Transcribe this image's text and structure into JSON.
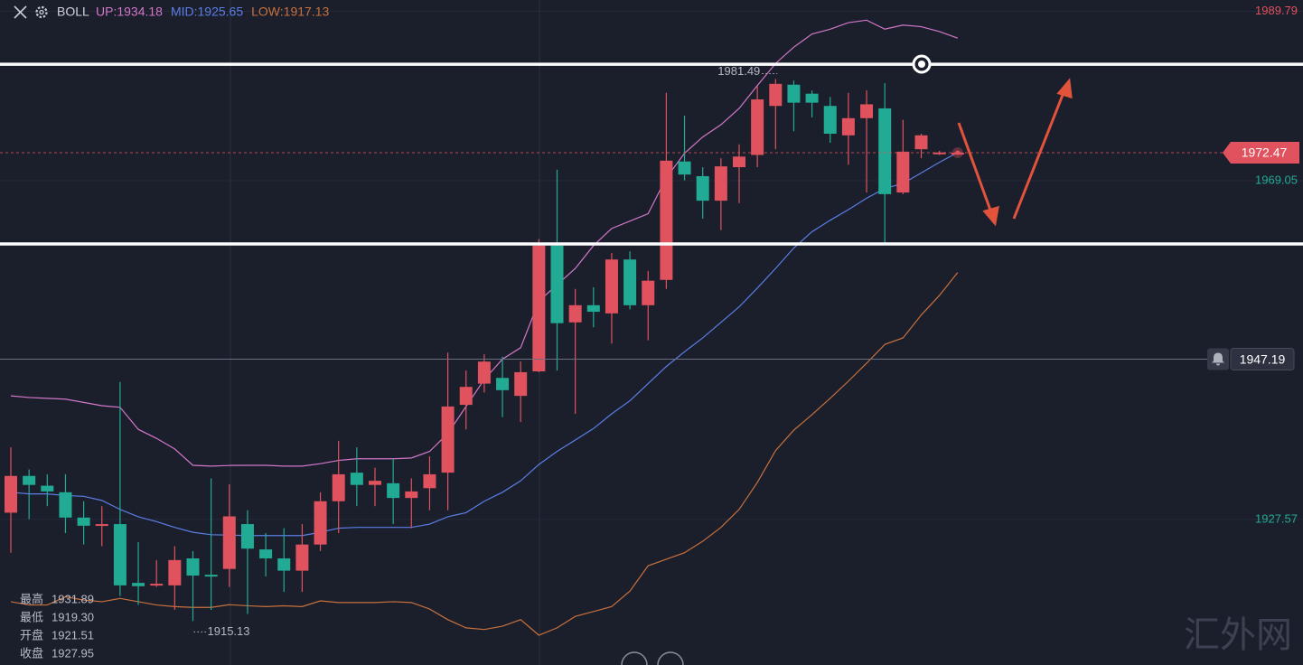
{
  "chart_data": {
    "type": "candlestick",
    "title": "BOLL",
    "up_color": "#e0525e",
    "down_color": "#22ab94",
    "ylim": [
      1909.75,
      1991.17
    ],
    "yticks": [
      1989.79,
      1969.05,
      1927.57
    ],
    "ytick_colors": [
      "#e0525e",
      "#22ab94",
      "#22ab94"
    ],
    "grid": true,
    "open": [
      1928.4,
      1932.9,
      1931.7,
      1930.9,
      1927.8,
      1926.8,
      1927.0,
      1919.8,
      1919.5,
      1919.5,
      1922.8,
      1920.8,
      1921.51,
      1927.0,
      1923.9,
      1922.8,
      1921.3,
      1924.5,
      1929.8,
      1933.3,
      1931.8,
      1932.0,
      1930.2,
      1931.4,
      1933.3,
      1941.6,
      1944.2,
      1944.9,
      1942.7,
      1945.7,
      1961.1,
      1951.7,
      1953.8,
      1952.8,
      1959.4,
      1953.8,
      1956.9,
      1971.4,
      1969.6,
      1966.6,
      1970.7,
      1972.2,
      1978.2,
      1980.8,
      1979.7,
      1978.2,
      1974.6,
      1976.7,
      1977.9,
      1967.6,
      1972.9,
      1972.3,
      1972.4
    ],
    "high": [
      1936.4,
      1933.7,
      1933.1,
      1933.1,
      1929.8,
      1929.2,
      1944.4,
      1924.8,
      1922.6,
      1924.3,
      1923.7,
      1932.6,
      1931.89,
      1928.7,
      1925.9,
      1926.5,
      1927.0,
      1930.9,
      1937.2,
      1936.4,
      1933.9,
      1935.0,
      1932.6,
      1935.3,
      1948.0,
      1945.8,
      1947.8,
      1947.5,
      1946.9,
      1961.9,
      1970.4,
      1955.8,
      1956.0,
      1960.2,
      1960.4,
      1958.0,
      1979.8,
      1977.0,
      1970.7,
      1971.8,
      1973.5,
      1980.6,
      1981.49,
      1981.3,
      1980.1,
      1979.3,
      1979.8,
      1980.1,
      1981.0,
      1976.5,
      1974.8,
      1972.7,
      1972.6
    ],
    "low": [
      1923.5,
      1927.6,
      1929.2,
      1925.9,
      1924.5,
      1924.3,
      1918.2,
      1917.1,
      1919.3,
      1916.5,
      1915.13,
      1916.5,
      1919.3,
      1916.0,
      1920.6,
      1918.7,
      1918.7,
      1923.7,
      1925.9,
      1929.2,
      1929.2,
      1927.0,
      1926.5,
      1928.7,
      1928.7,
      1938.6,
      1943.1,
      1940.1,
      1939.5,
      1945.6,
      1945.8,
      1940.5,
      1951.1,
      1949.1,
      1953.3,
      1949.5,
      1955.8,
      1969.1,
      1964.4,
      1963.0,
      1966.3,
      1970.7,
      1972.9,
      1975.1,
      1976.8,
      1973.7,
      1971.0,
      1967.6,
      1961.3,
      1967.4,
      1971.8,
      1972.2,
      1972.3
    ],
    "close": [
      1932.9,
      1931.8,
      1931.0,
      1927.8,
      1926.8,
      1927.0,
      1919.5,
      1919.4,
      1919.7,
      1922.6,
      1920.7,
      1920.6,
      1927.95,
      1924.0,
      1922.8,
      1921.3,
      1924.5,
      1929.8,
      1933.1,
      1931.8,
      1932.3,
      1930.2,
      1931.0,
      1933.1,
      1941.4,
      1943.8,
      1946.9,
      1943.4,
      1945.6,
      1961.1,
      1951.6,
      1953.8,
      1953.0,
      1959.4,
      1953.8,
      1956.8,
      1971.5,
      1969.8,
      1966.6,
      1970.8,
      1972.0,
      1979.0,
      1980.9,
      1978.6,
      1978.6,
      1974.8,
      1976.7,
      1978.4,
      1967.4,
      1972.6,
      1974.6,
      1972.5,
      1972.47
    ],
    "bands": [
      {
        "name": "UP:",
        "color": "#d277c8",
        "values": [
          1942.7,
          1942.5,
          1942.4,
          1942.3,
          1941.9,
          1941.5,
          1941.3,
          1938.6,
          1937.5,
          1936.2,
          1934.2,
          1934.1,
          1934.18,
          1934.2,
          1934.2,
          1934.1,
          1934.1,
          1934.4,
          1934.8,
          1935.0,
          1935.0,
          1935.0,
          1935.1,
          1935.9,
          1938.1,
          1941.4,
          1944.7,
          1947.2,
          1948.6,
          1954.3,
          1956.3,
          1958.3,
          1961.1,
          1963.2,
          1964.1,
          1965.0,
          1969.4,
          1972.4,
          1974.4,
          1975.9,
          1977.9,
          1980.7,
          1983.4,
          1985.4,
          1987.0,
          1987.6,
          1988.4,
          1988.7,
          1987.6,
          1988.1,
          1987.9,
          1987.3,
          1986.5
        ]
      },
      {
        "name": "MID:",
        "color": "#5b7ee6",
        "values": [
          1930.9,
          1930.7,
          1930.7,
          1930.5,
          1930.4,
          1929.9,
          1928.8,
          1927.9,
          1927.3,
          1926.6,
          1926.0,
          1925.7,
          1925.65,
          1925.6,
          1925.6,
          1925.6,
          1925.6,
          1926.0,
          1926.5,
          1926.6,
          1926.6,
          1926.6,
          1926.6,
          1927.0,
          1927.9,
          1928.4,
          1929.8,
          1930.9,
          1932.3,
          1934.3,
          1935.9,
          1937.3,
          1938.7,
          1940.5,
          1942.1,
          1944.2,
          1946.3,
          1948.1,
          1949.8,
          1951.7,
          1953.6,
          1955.9,
          1958.3,
          1960.8,
          1962.8,
          1964.2,
          1965.5,
          1966.9,
          1968.1,
          1968.7,
          1970.0,
          1971.3,
          1972.5
        ]
      },
      {
        "name": "LOW:",
        "color": "#c8703c",
        "values": [
          1917.5,
          1917.1,
          1917.1,
          1918.1,
          1917.7,
          1917.5,
          1917.9,
          1917.5,
          1917.1,
          1916.9,
          1916.8,
          1916.8,
          1917.13,
          1917.0,
          1916.9,
          1917.0,
          1916.9,
          1917.6,
          1917.4,
          1917.4,
          1917.4,
          1917.5,
          1917.4,
          1916.6,
          1915.3,
          1914.3,
          1914.1,
          1914.5,
          1915.3,
          1913.4,
          1914.3,
          1915.7,
          1916.3,
          1916.9,
          1918.8,
          1921.9,
          1922.7,
          1923.5,
          1924.9,
          1926.6,
          1928.8,
          1932.1,
          1936.0,
          1938.5,
          1940.4,
          1942.4,
          1944.5,
          1946.7,
          1949.0,
          1949.8,
          1952.6,
          1955.0,
          1957.8
        ]
      }
    ],
    "hlines": [
      1983.3,
      1961.3
    ],
    "alert": 1947.19,
    "ohlc_box": {
      "labels": [
        "最高",
        "最低",
        "开盘",
        "收盘"
      ],
      "values": [
        1931.89,
        1919.3,
        1921.51,
        1927.95
      ],
      "value_labels": [
        "1931.89",
        "1919.30",
        "1921.51",
        "1927.95"
      ]
    },
    "watermark": "汇外网"
  }
}
